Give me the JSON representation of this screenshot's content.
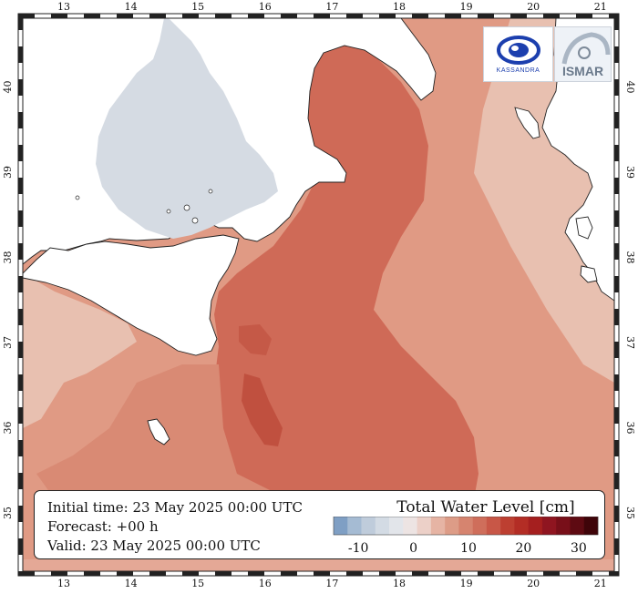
{
  "map": {
    "longitude_ticks": [
      "13",
      "14",
      "15",
      "16",
      "17",
      "18",
      "19",
      "20",
      "21"
    ],
    "latitude_ticks": [
      "35",
      "36",
      "37",
      "38",
      "39",
      "40"
    ],
    "colors": {
      "land": "#ffffff",
      "gulf_water": "#d5dbe3",
      "deep_red": "#c9604f",
      "mid_red": "#d3735f",
      "light_red": "#e09a84",
      "pale_red": "#e8c0b0"
    }
  },
  "info": {
    "initial_time": "Initial time: 23 May 2025 00:00 UTC",
    "forecast": "Forecast: +00 h",
    "valid": "Valid: 23 May 2025 00:00 UTC"
  },
  "legend": {
    "title": "Total Water Level [cm]",
    "tick_labels": [
      "-10",
      "0",
      "10",
      "20",
      "30"
    ],
    "colors": [
      "#7f9fc4",
      "#a5bbd3",
      "#bfccdb",
      "#d3dbe4",
      "#e2e5ea",
      "#ede4e3",
      "#ecd0c8",
      "#e6b4a4",
      "#dd9c87",
      "#d6846f",
      "#cf6e5b",
      "#c85747",
      "#bd3f31",
      "#b32d25",
      "#a51f1f",
      "#8f1520",
      "#780f19",
      "#5e0a12",
      "#3f0409"
    ]
  },
  "logos": {
    "left_text": "KASSANDRA",
    "right_text": "ISMAR"
  }
}
